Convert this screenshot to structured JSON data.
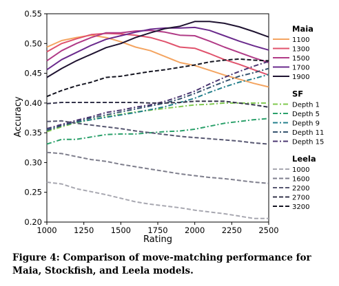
{
  "caption": "Figure 4: Comparison of move-matching performance for Maia, Stockfish, and Leela models.",
  "chart_data": {
    "type": "line",
    "xlabel": "Rating",
    "ylabel": "Accuracy",
    "xlim": [
      1000,
      2500
    ],
    "ylim": [
      0.2,
      0.55
    ],
    "x_ticks": [
      "1000",
      "1250",
      "1500",
      "1750",
      "2000",
      "2250",
      "2500"
    ],
    "y_ticks": [
      "0.20",
      "0.25",
      "0.30",
      "0.35",
      "0.40",
      "0.45",
      "0.50",
      "0.55"
    ],
    "grid": false,
    "legend_position": "right",
    "x": [
      1000,
      1100,
      1200,
      1300,
      1400,
      1500,
      1600,
      1700,
      1800,
      1900,
      2000,
      2100,
      2200,
      2300,
      2400,
      2500
    ],
    "groups": [
      {
        "title": "Maia",
        "series": [
          {
            "name": "1100",
            "color": "#f4a460",
            "dash": "solid",
            "values": [
              0.494,
              0.505,
              0.51,
              0.514,
              0.51,
              0.503,
              0.494,
              0.488,
              0.478,
              0.468,
              0.463,
              0.455,
              0.447,
              0.44,
              0.433,
              0.427
            ]
          },
          {
            "name": "1300",
            "color": "#e0526c",
            "dash": "solid",
            "values": [
              0.486,
              0.5,
              0.508,
              0.515,
              0.517,
              0.516,
              0.514,
              0.51,
              0.503,
              0.494,
              0.492,
              0.483,
              0.473,
              0.465,
              0.456,
              0.447
            ]
          },
          {
            "name": "1500",
            "color": "#b03a86",
            "dash": "solid",
            "values": [
              0.471,
              0.488,
              0.5,
              0.51,
              0.518,
              0.518,
              0.521,
              0.522,
              0.519,
              0.514,
              0.513,
              0.504,
              0.494,
              0.485,
              0.476,
              0.468
            ]
          },
          {
            "name": "1700",
            "color": "#6a2a8c",
            "dash": "solid",
            "values": [
              0.456,
              0.473,
              0.485,
              0.497,
              0.507,
              0.513,
              0.519,
              0.524,
              0.526,
              0.526,
              0.527,
              0.522,
              0.513,
              0.504,
              0.496,
              0.489
            ]
          },
          {
            "name": "1900",
            "color": "#1e1230",
            "dash": "solid",
            "values": [
              0.443,
              0.458,
              0.471,
              0.482,
              0.493,
              0.5,
              0.51,
              0.518,
              0.525,
              0.529,
              0.537,
              0.537,
              0.534,
              0.528,
              0.52,
              0.511
            ]
          }
        ]
      },
      {
        "title": "SF",
        "series": [
          {
            "name": "Depth 1",
            "color": "#7fc84e",
            "dash": "dashdot",
            "values": [
              0.352,
              0.36,
              0.367,
              0.372,
              0.377,
              0.381,
              0.385,
              0.388,
              0.391,
              0.394,
              0.397,
              0.398,
              0.4,
              0.4,
              0.4,
              0.4
            ]
          },
          {
            "name": "Depth 5",
            "color": "#2aa06a",
            "dash": "dashdot",
            "values": [
              0.331,
              0.339,
              0.339,
              0.343,
              0.347,
              0.348,
              0.348,
              0.35,
              0.352,
              0.353,
              0.356,
              0.361,
              0.366,
              0.369,
              0.372,
              0.374
            ]
          },
          {
            "name": "Depth 9",
            "color": "#24808c",
            "dash": "dashdot",
            "values": [
              0.355,
              0.362,
              0.368,
              0.372,
              0.376,
              0.38,
              0.384,
              0.389,
              0.394,
              0.401,
              0.408,
              0.418,
              0.427,
              0.435,
              0.441,
              0.448
            ]
          },
          {
            "name": "Depth 11",
            "color": "#35536e",
            "dash": "dashdot",
            "values": [
              0.354,
              0.362,
              0.369,
              0.375,
              0.38,
              0.385,
              0.39,
              0.395,
              0.4,
              0.407,
              0.416,
              0.426,
              0.436,
              0.445,
              0.451,
              0.458
            ]
          },
          {
            "name": "Depth 15",
            "color": "#4a3570",
            "dash": "dashdot",
            "values": [
              0.357,
              0.364,
              0.371,
              0.377,
              0.384,
              0.388,
              0.393,
              0.397,
              0.403,
              0.411,
              0.42,
              0.432,
              0.443,
              0.453,
              0.462,
              0.47
            ]
          }
        ]
      },
      {
        "title": "Leela",
        "series": [
          {
            "name": "1000",
            "color": "#a7a7b0",
            "dash": "dashed",
            "values": [
              0.267,
              0.264,
              0.256,
              0.251,
              0.246,
              0.24,
              0.234,
              0.23,
              0.227,
              0.224,
              0.22,
              0.217,
              0.214,
              0.21,
              0.206,
              0.206
            ]
          },
          {
            "name": "1600",
            "color": "#7e7e8c",
            "dash": "dashed",
            "values": [
              0.317,
              0.315,
              0.31,
              0.305,
              0.302,
              0.297,
              0.293,
              0.289,
              0.285,
              0.281,
              0.278,
              0.275,
              0.273,
              0.27,
              0.267,
              0.265
            ]
          },
          {
            "name": "2200",
            "color": "#565670",
            "dash": "dashed",
            "values": [
              0.369,
              0.37,
              0.366,
              0.363,
              0.36,
              0.357,
              0.353,
              0.35,
              0.347,
              0.344,
              0.342,
              0.34,
              0.338,
              0.336,
              0.333,
              0.331
            ]
          },
          {
            "name": "2700",
            "color": "#33334a",
            "dash": "dashed",
            "values": [
              0.399,
              0.401,
              0.401,
              0.401,
              0.401,
              0.401,
              0.401,
              0.4,
              0.4,
              0.401,
              0.403,
              0.403,
              0.403,
              0.4,
              0.397,
              0.393
            ]
          },
          {
            "name": "3200",
            "color": "#141420",
            "dash": "dashed",
            "values": [
              0.411,
              0.421,
              0.429,
              0.435,
              0.443,
              0.445,
              0.449,
              0.453,
              0.456,
              0.46,
              0.464,
              0.469,
              0.472,
              0.474,
              0.472,
              0.471
            ]
          }
        ]
      }
    ]
  }
}
